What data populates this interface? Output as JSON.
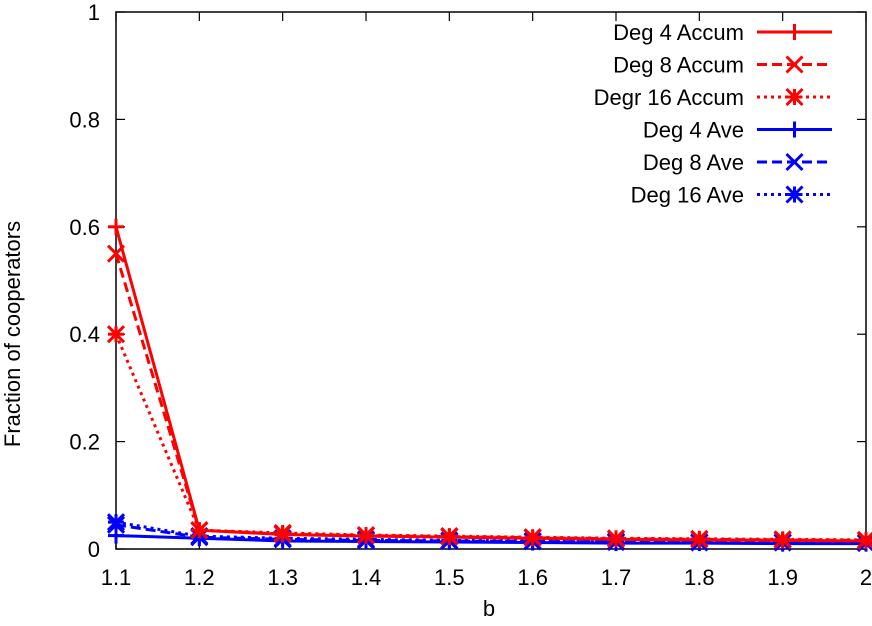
{
  "chart_data": {
    "type": "line",
    "title": "",
    "xlabel": "b",
    "ylabel": "Fraction of cooperators",
    "xlim": [
      1.1,
      2.0
    ],
    "ylim": [
      0,
      1
    ],
    "xticks": [
      "1.1",
      "1.2",
      "1.3",
      "1.4",
      "1.5",
      "1.6",
      "1.7",
      "1.8",
      "1.9",
      "2"
    ],
    "yticks": [
      "0",
      "0.2",
      "0.4",
      "0.6",
      "0.8",
      "1"
    ],
    "grid": false,
    "legend_position": "top-right",
    "x": [
      1.1,
      1.2,
      1.3,
      1.4,
      1.5,
      1.6,
      1.7,
      1.8,
      1.9,
      2.0
    ],
    "series": [
      {
        "name": "Deg 4 Accum",
        "color": "#ff0000",
        "dash": "solid",
        "marker": "plus",
        "values": [
          0.6,
          0.035,
          0.027,
          0.024,
          0.022,
          0.02,
          0.018,
          0.017,
          0.016,
          0.015
        ]
      },
      {
        "name": "Deg 8 Accum",
        "color": "#ff0000",
        "dash": "dashed",
        "marker": "cross",
        "values": [
          0.55,
          0.035,
          0.028,
          0.025,
          0.023,
          0.021,
          0.019,
          0.018,
          0.017,
          0.016
        ]
      },
      {
        "name": "Degr 16 Accum",
        "color": "#ff0000",
        "dash": "dotted",
        "marker": "star",
        "values": [
          0.4,
          0.035,
          0.03,
          0.026,
          0.024,
          0.022,
          0.02,
          0.019,
          0.018,
          0.017
        ]
      },
      {
        "name": "Deg 4 Ave",
        "color": "#0000ff",
        "dash": "solid",
        "marker": "plus",
        "values": [
          0.025,
          0.02,
          0.015,
          0.014,
          0.013,
          0.012,
          0.011,
          0.011,
          0.01,
          0.01
        ]
      },
      {
        "name": "Deg 8 Ave",
        "color": "#0000ff",
        "dash": "dashed",
        "marker": "cross",
        "values": [
          0.045,
          0.022,
          0.018,
          0.016,
          0.015,
          0.014,
          0.013,
          0.012,
          0.012,
          0.011
        ]
      },
      {
        "name": "Deg 16 Ave",
        "color": "#0000ff",
        "dash": "dotted",
        "marker": "star",
        "values": [
          0.05,
          0.024,
          0.02,
          0.018,
          0.016,
          0.015,
          0.014,
          0.013,
          0.013,
          0.012
        ]
      }
    ]
  }
}
